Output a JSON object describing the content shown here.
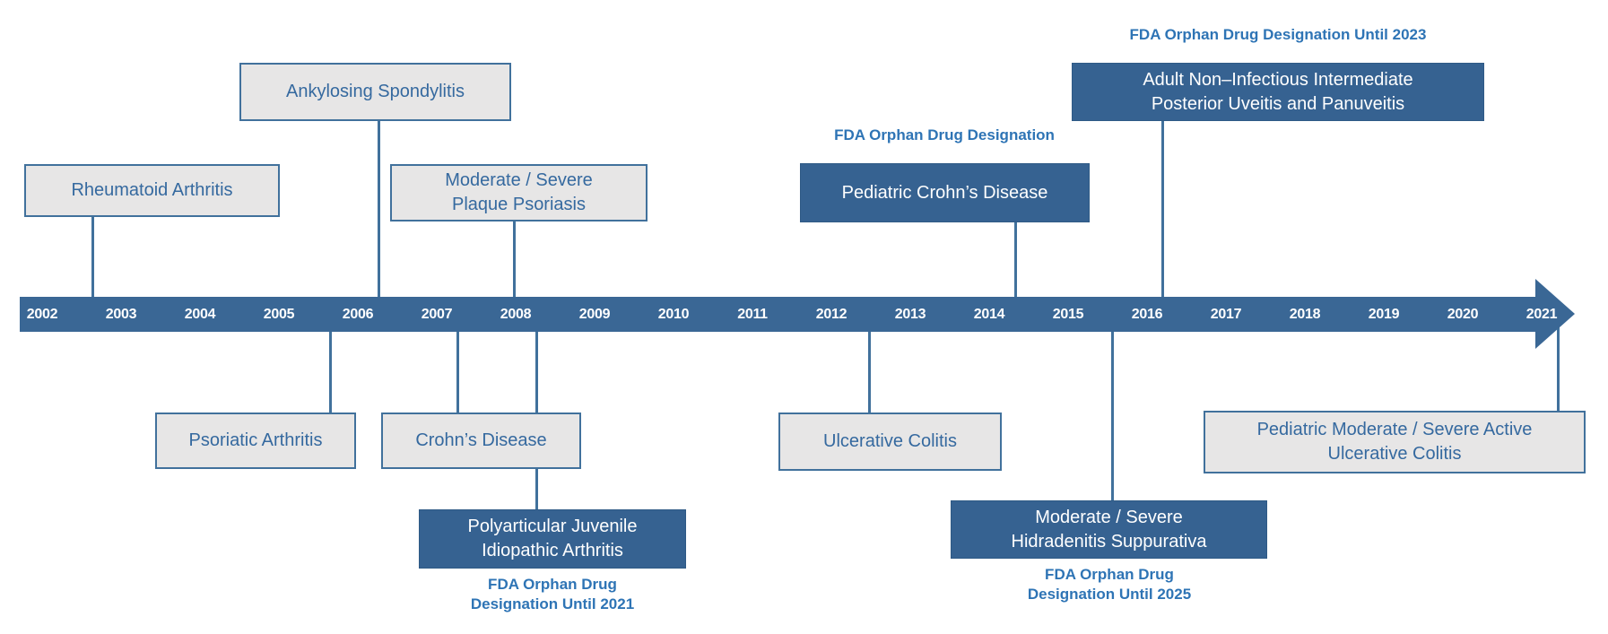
{
  "colors": {
    "bar_blue": "#3A6795",
    "dark_box_fill": "#366291",
    "dark_box_edge": "#2F5A86",
    "light_box_fill": "#E7E6E6",
    "box_border": "#41719C",
    "box_text_blue": "#35699F",
    "fda_label_blue": "#2E74B5",
    "connector": "#41719C",
    "year_text": "#FFFFFF"
  },
  "timeline": {
    "years": [
      "2002",
      "2003",
      "2004",
      "2005",
      "2006",
      "2007",
      "2008",
      "2009",
      "2010",
      "2011",
      "2012",
      "2013",
      "2014",
      "2015",
      "2016",
      "2017",
      "2018",
      "2019",
      "2020",
      "2021"
    ]
  },
  "events": [
    {
      "id": "rheumatoid-arthritis",
      "side": "above",
      "style": "light",
      "lines": [
        "Rheumatoid Arthritis"
      ]
    },
    {
      "id": "ankylosing-spondylitis",
      "side": "above",
      "style": "light",
      "lines": [
        "Ankylosing Spondylitis"
      ]
    },
    {
      "id": "plaque-psoriasis",
      "side": "above",
      "style": "light",
      "lines": [
        "Moderate / Severe",
        "Plaque Psoriasis"
      ]
    },
    {
      "id": "pediatric-crohns",
      "side": "above",
      "style": "dark",
      "lines": [
        "Pediatric Crohn’s Disease"
      ],
      "note_above": [
        "FDA Orphan Drug Designation"
      ]
    },
    {
      "id": "uveitis",
      "side": "above",
      "style": "dark",
      "lines": [
        "Adult Non–Infectious Intermediate",
        "Posterior Uveitis and Panuveitis"
      ],
      "note_above": [
        "FDA Orphan Drug Designation Until 2023"
      ]
    },
    {
      "id": "psoriatic-arthritis",
      "side": "below",
      "style": "light",
      "lines": [
        "Psoriatic Arthritis"
      ]
    },
    {
      "id": "crohns-disease",
      "side": "below",
      "style": "light",
      "lines": [
        "Crohn’s Disease"
      ]
    },
    {
      "id": "jia",
      "side": "below",
      "style": "dark",
      "lines": [
        "Polyarticular Juvenile",
        "Idiopathic Arthritis"
      ],
      "note_below": [
        "FDA Orphan Drug",
        "Designation Until 2021"
      ]
    },
    {
      "id": "ulcerative-colitis",
      "side": "below",
      "style": "light",
      "lines": [
        "Ulcerative Colitis"
      ]
    },
    {
      "id": "hidradenitis",
      "side": "below",
      "style": "dark",
      "lines": [
        "Moderate / Severe",
        "Hidradenitis Suppurativa"
      ],
      "note_below": [
        "FDA Orphan Drug",
        "Designation Until 2025"
      ]
    },
    {
      "id": "pediatric-uc",
      "side": "below",
      "style": "light",
      "lines": [
        "Pediatric Moderate / Severe Active",
        "Ulcerative Colitis"
      ]
    }
  ]
}
